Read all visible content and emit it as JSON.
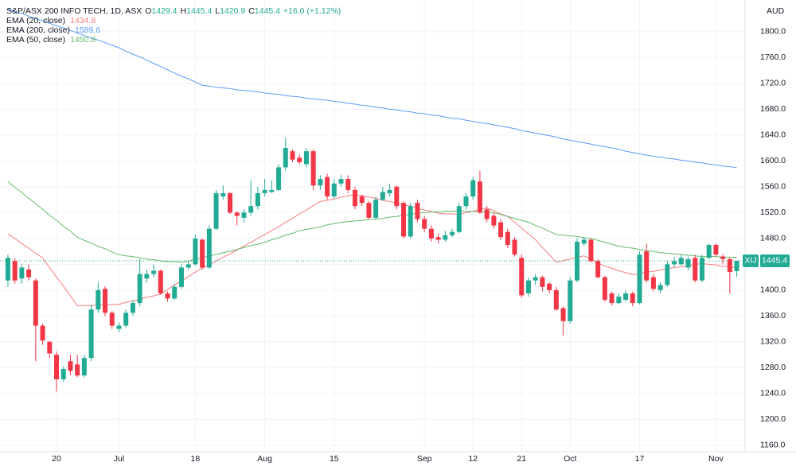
{
  "chart_data": {
    "type": "candlestick",
    "title": "S&P/ASX 200 INFO TECH, 1D, ASX",
    "currency": "AUD",
    "symbol": "XIJ",
    "ohlc_prefixes": [
      "O",
      "H",
      "L",
      "C"
    ],
    "change_label": "+16.0 (+1.12%)",
    "categories": [
      null,
      null,
      null,
      null,
      null,
      null,
      null,
      "20",
      null,
      null,
      null,
      null,
      null,
      null,
      null,
      null,
      "Jul",
      null,
      null,
      null,
      null,
      null,
      null,
      null,
      null,
      null,
      null,
      "18",
      null,
      null,
      null,
      null,
      null,
      null,
      null,
      null,
      null,
      "Aug",
      null,
      null,
      null,
      null,
      null,
      null,
      null,
      null,
      null,
      "15",
      null,
      null,
      null,
      null,
      null,
      null,
      null,
      null,
      null,
      null,
      null,
      null,
      "Sep",
      null,
      null,
      null,
      null,
      null,
      null,
      "12",
      null,
      null,
      null,
      null,
      null,
      null,
      "21",
      null,
      null,
      null,
      null,
      null,
      null,
      "Oct",
      null,
      null,
      null,
      null,
      null,
      null,
      null,
      null,
      null,
      "17",
      null,
      null,
      null,
      null,
      null,
      null,
      null,
      null,
      null,
      null,
      "Nov",
      null,
      null,
      null
    ],
    "open": [
      1415,
      1445,
      1418,
      1432,
      1415,
      1345,
      1320,
      1300,
      1262,
      1290,
      1285,
      1268,
      1295,
      1370,
      1402,
      1365,
      1340,
      1345,
      1365,
      1380,
      1418,
      1425,
      1430,
      1395,
      1387,
      1405,
      1435,
      1440,
      1478,
      1435,
      1495,
      1545,
      1550,
      1520,
      1512,
      1520,
      1530,
      1550,
      1552,
      1555,
      1590,
      1615,
      1605,
      1595,
      1615,
      1562,
      1575,
      1545,
      1565,
      1572,
      1555,
      1545,
      1535,
      1512,
      1540,
      1550,
      1560,
      1535,
      1483,
      1535,
      1510,
      1495,
      1482,
      1478,
      1485,
      1490,
      1530,
      1545,
      1568,
      1525,
      1515,
      1505,
      1490,
      1478,
      1450,
      1395,
      1415,
      1420,
      1410,
      1400,
      1372,
      1352,
      1415,
      1472,
      1478,
      1445,
      1420,
      1395,
      1380,
      1385,
      1395,
      1380,
      1460,
      1420,
      1400,
      1408,
      1440,
      1440,
      1435,
      1450,
      1415,
      1450,
      1470,
      1452,
      1448,
      1429.4
    ],
    "high": [
      1455,
      1450,
      1440,
      1440,
      1418,
      1348,
      1322,
      1305,
      1282,
      1300,
      1300,
      1300,
      1378,
      1412,
      1406,
      1368,
      1350,
      1370,
      1385,
      1448,
      1432,
      1440,
      1432,
      1398,
      1410,
      1440,
      1445,
      1485,
      1480,
      1500,
      1555,
      1562,
      1552,
      1522,
      1525,
      1570,
      1560,
      1572,
      1570,
      1595,
      1636,
      1618,
      1610,
      1620,
      1618,
      1578,
      1580,
      1572,
      1578,
      1578,
      1560,
      1548,
      1538,
      1545,
      1560,
      1565,
      1562,
      1538,
      1535,
      1540,
      1515,
      1500,
      1488,
      1492,
      1495,
      1535,
      1550,
      1575,
      1585,
      1530,
      1520,
      1510,
      1495,
      1482,
      1455,
      1420,
      1425,
      1422,
      1412,
      1405,
      1375,
      1420,
      1480,
      1482,
      1480,
      1448,
      1422,
      1398,
      1395,
      1400,
      1398,
      1460,
      1472,
      1425,
      1412,
      1445,
      1452,
      1455,
      1452,
      1455,
      1455,
      1472,
      1472,
      1456,
      1450,
      1445.4
    ],
    "low": [
      1405,
      1410,
      1410,
      1415,
      1290,
      1315,
      1295,
      1243,
      1258,
      1268,
      1265,
      1265,
      1290,
      1365,
      1360,
      1340,
      1335,
      1342,
      1360,
      1375,
      1412,
      1420,
      1393,
      1382,
      1385,
      1402,
      1432,
      1438,
      1432,
      1433,
      1493,
      1540,
      1518,
      1500,
      1505,
      1515,
      1525,
      1545,
      1550,
      1553,
      1585,
      1598,
      1595,
      1590,
      1555,
      1555,
      1540,
      1542,
      1560,
      1550,
      1525,
      1530,
      1510,
      1510,
      1538,
      1545,
      1525,
      1480,
      1480,
      1505,
      1490,
      1475,
      1472,
      1475,
      1482,
      1488,
      1525,
      1540,
      1518,
      1505,
      1495,
      1478,
      1465,
      1452,
      1388,
      1390,
      1408,
      1398,
      1395,
      1368,
      1330,
      1348,
      1412,
      1468,
      1443,
      1418,
      1382,
      1376,
      1378,
      1382,
      1375,
      1378,
      1412,
      1398,
      1395,
      1405,
      1435,
      1438,
      1430,
      1412,
      1412,
      1448,
      1452,
      1440,
      1395,
      1420.9
    ],
    "close": [
      1450,
      1415,
      1435,
      1420,
      1345,
      1322,
      1302,
      1262,
      1278,
      1275,
      1268,
      1295,
      1370,
      1400,
      1365,
      1345,
      1345,
      1365,
      1380,
      1425,
      1425,
      1430,
      1395,
      1387,
      1405,
      1435,
      1440,
      1480,
      1435,
      1495,
      1550,
      1550,
      1520,
      1515,
      1520,
      1530,
      1550,
      1555,
      1555,
      1590,
      1620,
      1602,
      1598,
      1615,
      1562,
      1572,
      1545,
      1565,
      1572,
      1555,
      1530,
      1535,
      1512,
      1540,
      1552,
      1555,
      1530,
      1483,
      1530,
      1510,
      1495,
      1480,
      1478,
      1485,
      1490,
      1530,
      1545,
      1570,
      1520,
      1510,
      1500,
      1482,
      1470,
      1455,
      1392,
      1415,
      1420,
      1405,
      1400,
      1370,
      1352,
      1415,
      1475,
      1478,
      1445,
      1420,
      1385,
      1380,
      1390,
      1395,
      1380,
      1455,
      1415,
      1402,
      1408,
      1440,
      1445,
      1450,
      1448,
      1415,
      1450,
      1470,
      1455,
      1448,
      1428,
      1445.4
    ],
    "up_color": "#22ab94",
    "down_color": "#f23645",
    "series": [
      {
        "name": "EMA (20, close)",
        "color": "#f77c80",
        "values": [
          1487,
          1480,
          1472,
          1465,
          1457,
          1450,
          1435,
          1420,
          1406,
          1391,
          1376,
          1376,
          1376,
          1377,
          1377,
          1378,
          1378,
          1381,
          1383,
          1386,
          1389,
          1391,
          1394,
          1401,
          1408,
          1414,
          1421,
          1428,
          1434,
          1439,
          1445,
          1451,
          1456,
          1462,
          1468,
          1474,
          1480,
          1486,
          1492,
          1498,
          1505,
          1511,
          1518,
          1524,
          1531,
          1537,
          1539,
          1541,
          1544,
          1546,
          1548,
          1546,
          1544,
          1542,
          1539,
          1537,
          1535,
          1532,
          1530,
          1527,
          1524,
          1522,
          1519,
          1518,
          1518,
          1517,
          1520,
          1522,
          1525,
          1527,
          1523,
          1518,
          1514,
          1505,
          1496,
          1487,
          1478,
          1466,
          1455,
          1443,
          1446,
          1448,
          1451,
          1453,
          1448,
          1442,
          1437,
          1434,
          1430,
          1427,
          1424,
          1426,
          1428,
          1429,
          1431,
          1433,
          1435,
          1436,
          1438,
          1440,
          1441,
          1440,
          1439,
          1437,
          1436,
          1434.8
        ]
      },
      {
        "name": "EMA (200, close)",
        "color": "#5b9cf6",
        "values": [
          1835,
          1831,
          1828,
          1824,
          1820,
          1817,
          1813,
          1809,
          1806,
          1802,
          1798,
          1794,
          1790,
          1787,
          1783,
          1779,
          1775,
          1770,
          1765,
          1761,
          1756,
          1751,
          1746,
          1741,
          1736,
          1731,
          1727,
          1722,
          1717,
          1716,
          1714,
          1713,
          1712,
          1710,
          1709,
          1708,
          1707,
          1705,
          1704,
          1703,
          1701,
          1700,
          1699,
          1697,
          1696,
          1695,
          1694,
          1692,
          1691,
          1689,
          1688,
          1686,
          1685,
          1683,
          1682,
          1680,
          1679,
          1677,
          1676,
          1674,
          1673,
          1671,
          1670,
          1668,
          1666,
          1665,
          1663,
          1661,
          1659,
          1658,
          1656,
          1654,
          1652,
          1650,
          1647,
          1645,
          1643,
          1641,
          1639,
          1637,
          1634,
          1632,
          1630,
          1628,
          1626,
          1624,
          1622,
          1620,
          1618,
          1615,
          1613,
          1611,
          1609,
          1607,
          1606,
          1604,
          1603,
          1601,
          1600,
          1598,
          1597,
          1595,
          1594,
          1592,
          1591,
          1589.6
        ]
      },
      {
        "name": "EMA (50, close)",
        "color": "#66bb6a",
        "values": [
          1568,
          1559,
          1551,
          1542,
          1534,
          1525,
          1516,
          1508,
          1499,
          1491,
          1482,
          1477,
          1473,
          1468,
          1464,
          1459,
          1455,
          1453,
          1452,
          1450,
          1448,
          1447,
          1445,
          1444,
          1444,
          1443,
          1445,
          1448,
          1450,
          1453,
          1455,
          1458,
          1460,
          1463,
          1466,
          1469,
          1471,
          1474,
          1478,
          1481,
          1485,
          1488,
          1492,
          1494,
          1496,
          1498,
          1501,
          1503,
          1505,
          1506,
          1507,
          1508,
          1509,
          1510,
          1511,
          1513,
          1514,
          1516,
          1517,
          1519,
          1520,
          1521,
          1521,
          1522,
          1522,
          1523,
          1522,
          1522,
          1521,
          1521,
          1520,
          1517,
          1514,
          1511,
          1508,
          1505,
          1500,
          1496,
          1491,
          1486,
          1485,
          1484,
          1483,
          1481,
          1480,
          1477,
          1474,
          1471,
          1468,
          1466,
          1465,
          1463,
          1461,
          1460,
          1458,
          1457,
          1456,
          1455,
          1454,
          1453,
          1452,
          1452,
          1452,
          1451,
          1451,
          1450.8
        ]
      }
    ],
    "ylim": [
      1150,
      1849
    ],
    "yticks": [
      {
        "value": 1160,
        "label": "1160.0"
      },
      {
        "value": 1200,
        "label": "1200.0"
      },
      {
        "value": 1240,
        "label": "1240.0"
      },
      {
        "value": 1280,
        "label": "1280.0"
      },
      {
        "value": 1320,
        "label": "1320.0"
      },
      {
        "value": 1360,
        "label": "1360.0"
      },
      {
        "value": 1400,
        "label": "1400.0"
      },
      {
        "value": 1440,
        "label": "1440.0"
      },
      {
        "value": 1480,
        "label": "1480.0"
      },
      {
        "value": 1520,
        "label": "1520.0"
      },
      {
        "value": 1560,
        "label": "1560.0"
      },
      {
        "value": 1600,
        "label": "1600.0"
      },
      {
        "value": 1640,
        "label": "1640.0"
      },
      {
        "value": 1680,
        "label": "1680.0"
      },
      {
        "value": 1720,
        "label": "1720.0"
      },
      {
        "value": 1760,
        "label": "1760.0"
      },
      {
        "value": 1800,
        "label": "1800.0"
      }
    ],
    "grid": true
  }
}
